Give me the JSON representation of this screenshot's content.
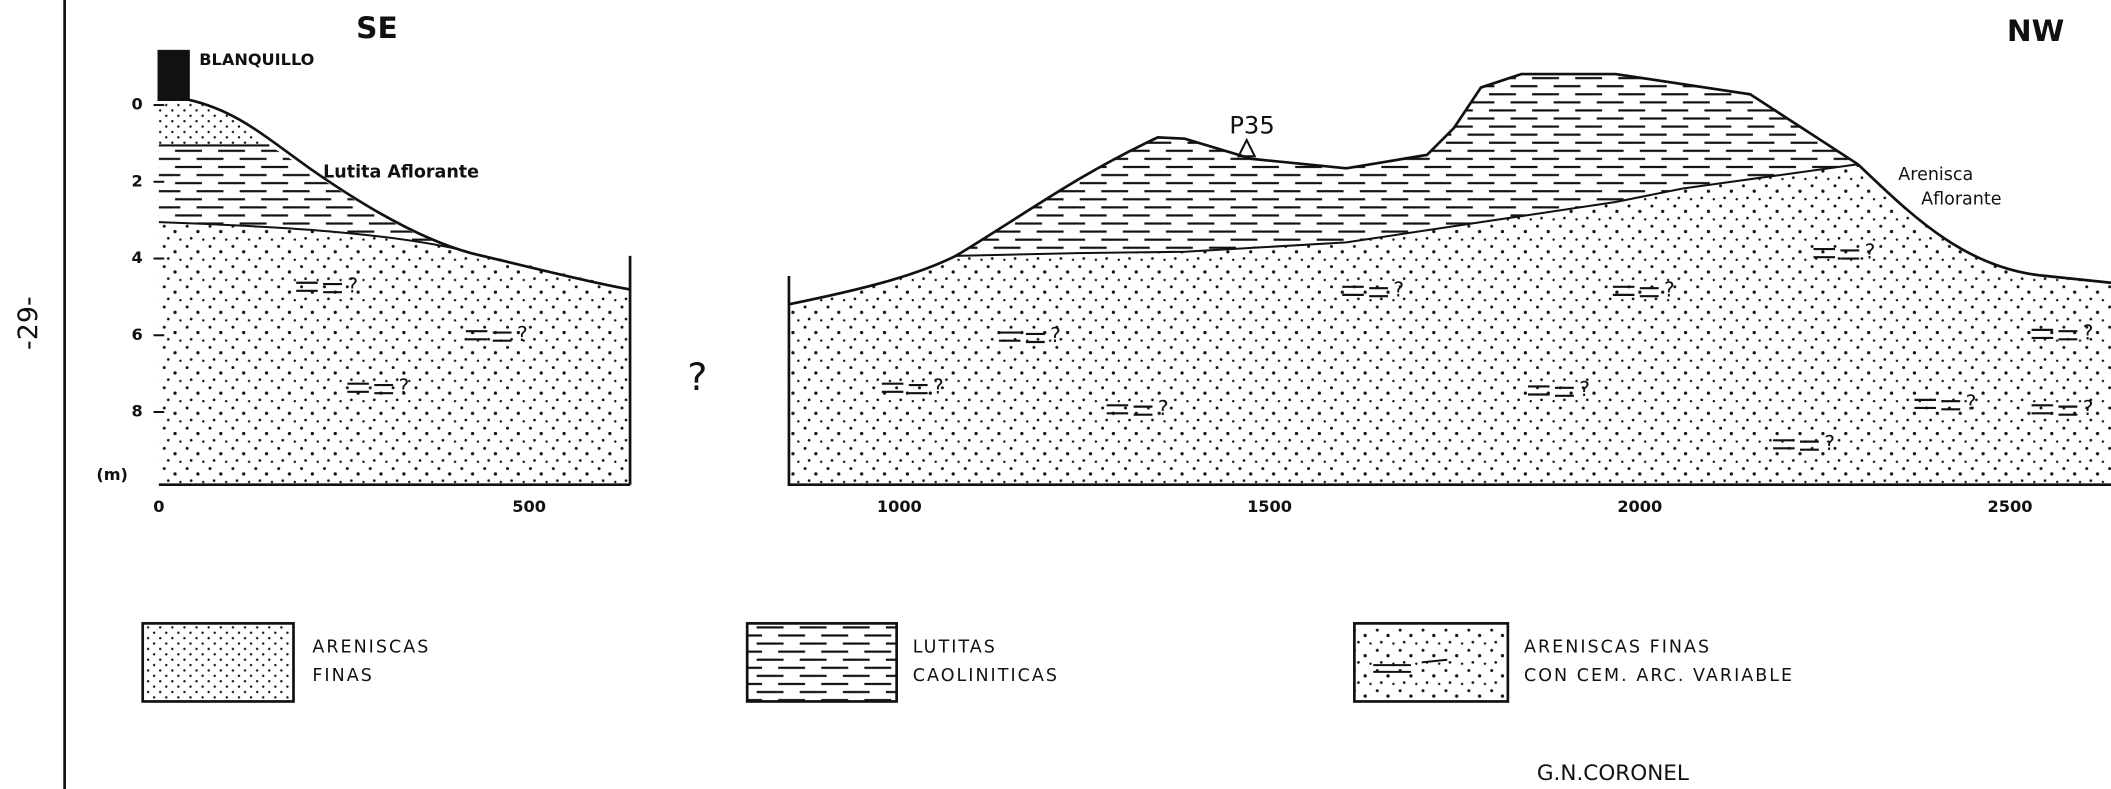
{
  "header": {
    "page_number": "-29-"
  },
  "section": {
    "left_direction": "SE",
    "right_direction": "NW",
    "gap_mark": "?"
  },
  "axis": {
    "y_unit": "(m)",
    "yticks": [
      0,
      2,
      4,
      6,
      8
    ],
    "xticks": [
      0,
      500,
      1000,
      1500,
      2000,
      2500
    ]
  },
  "annotations": {
    "blanquillo": "BLANQUILLO",
    "lutita": "Lutita Aflorante",
    "p35": "P35",
    "arenisca": [
      "Arenisca",
      "Aflorante"
    ]
  },
  "lithology_marks": [
    "?",
    "?",
    "?",
    "?",
    "?",
    "?",
    "?",
    "?",
    "?",
    "?",
    "?",
    "?",
    "?",
    "?"
  ],
  "legend": [
    {
      "lines": [
        "ARENISCAS",
        "FINAS"
      ]
    },
    {
      "lines": [
        "LUTITAS",
        "CAOLINITICAS"
      ]
    },
    {
      "lines": [
        "ARENISCAS FINAS",
        "CON CEM. ARC. VARIABLE"
      ]
    }
  ],
  "author": "G.N.CORONEL"
}
